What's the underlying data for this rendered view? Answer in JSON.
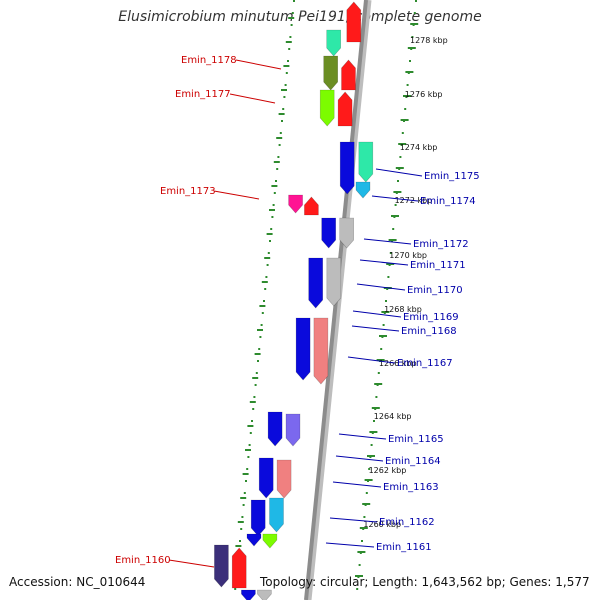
{
  "title": "Elusimicrobium minutum Pei191, complete genome",
  "footer": {
    "accession": "Accession: NC_010644",
    "summary": "Topology: circular; Length: 1,643,562 bp; Genes: 1,577"
  },
  "colors": {
    "backbone": "#8c8c8c",
    "tick_dots": "#2e8b2e",
    "forward_label": "#cc0000",
    "reverse_label": "#0000aa",
    "forward_gene": "#ff1a1a",
    "reverse_gene": "#0a0adc"
  },
  "position_labels": [
    "1278 kbp",
    "1276 kbp",
    "1274 kbp",
    "1272 kbp",
    "1270 kbp",
    "1268 kbp",
    "1266 kbp",
    "1264 kbp",
    "1262 kbp",
    "1260 kbp"
  ],
  "gene_labels": {
    "forward": [
      "Emin_1178",
      "Emin_1177",
      "Emin_1173",
      "Emin_1160"
    ],
    "reverse": [
      "Emin_1175",
      "Emin_1174",
      "Emin_1172",
      "Emin_1171",
      "Emin_1170",
      "Emin_1169",
      "Emin_1168",
      "Emin_1167",
      "Emin_1165",
      "Emin_1164",
      "Emin_1163",
      "Emin_1162",
      "Emin_1161"
    ]
  }
}
